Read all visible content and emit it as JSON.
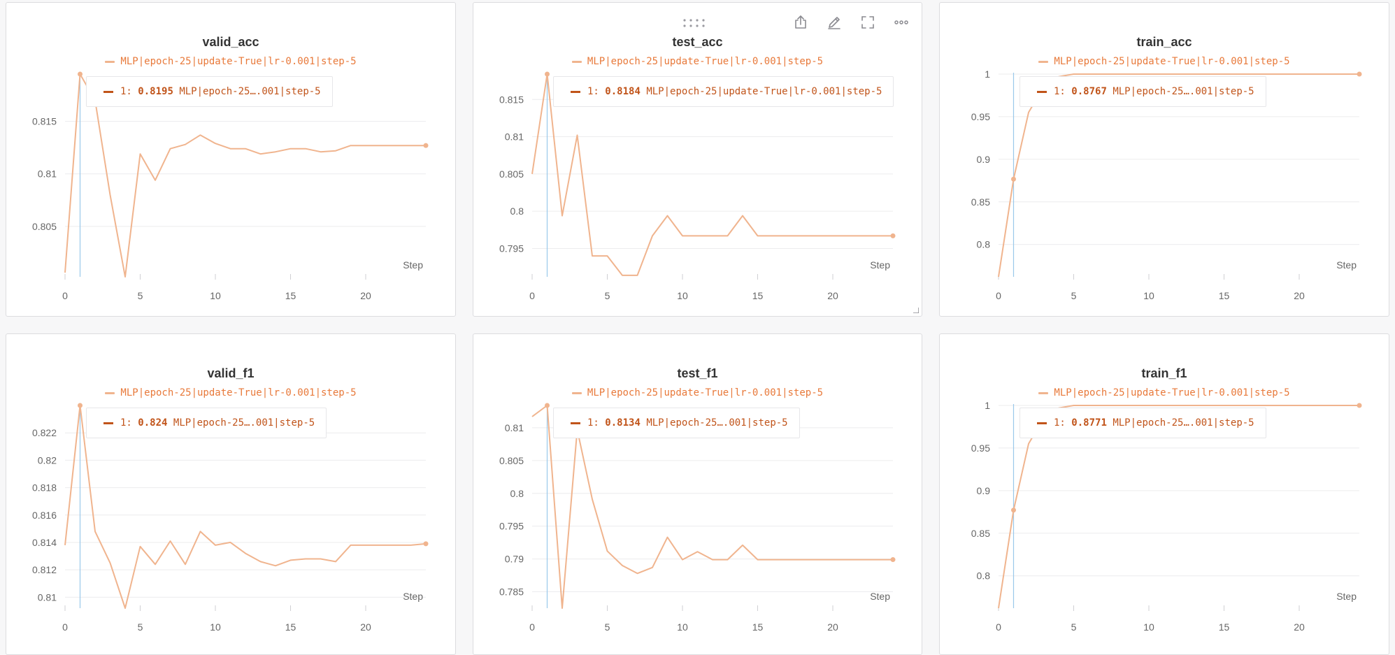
{
  "colors": {
    "line": "#f0b48e",
    "hover_line": "#9ac8ea",
    "legend_text": "#e8793a",
    "tooltip_text": "#c1541a",
    "grid": "#ececee"
  },
  "icons": [
    "drag-handle-icon",
    "share-icon",
    "edit-icon",
    "fullscreen-icon",
    "more-icon",
    "resize-corner-icon"
  ],
  "chart_data": [
    {
      "type": "line",
      "title": "valid_acc",
      "xlabel": "Step",
      "legend": "MLP|epoch-25|update-True|lr-0.001|step-5",
      "tooltip": {
        "prefix": "1:",
        "value": "0.8195",
        "name": "MLP|epoch-25….001|step-5"
      },
      "hover_x": 1,
      "xlim": [
        0,
        24
      ],
      "ylim": [
        0.8002,
        0.8195
      ],
      "x_ticks": [
        0,
        5,
        10,
        15,
        20
      ],
      "y_ticks": [
        0.805,
        0.81,
        0.815
      ],
      "y_tick_labels": [
        "0.805",
        "0.81",
        "0.815"
      ],
      "x": [
        0,
        1,
        2,
        3,
        4,
        5,
        6,
        7,
        8,
        9,
        10,
        11,
        12,
        13,
        14,
        15,
        16,
        17,
        18,
        19,
        20,
        21,
        22,
        23,
        24
      ],
      "values": [
        0.8006,
        0.8195,
        0.817,
        0.808,
        0.8002,
        0.8119,
        0.8094,
        0.8124,
        0.8128,
        0.8137,
        0.8129,
        0.8124,
        0.8124,
        0.8119,
        0.8121,
        0.8124,
        0.8124,
        0.8121,
        0.8122,
        0.8127,
        0.8127,
        0.8127,
        0.8127,
        0.8127,
        0.8127
      ]
    },
    {
      "type": "line",
      "title": "test_acc",
      "xlabel": "Step",
      "legend": "MLP|epoch-25|update-True|lr-0.001|step-5",
      "tooltip": {
        "prefix": "1:",
        "value": "0.8184",
        "name": "MLP|epoch-25|update-True|lr-0.001|step-5"
      },
      "hover_x": 1,
      "xlim": [
        0,
        24
      ],
      "ylim": [
        0.7912,
        0.8184
      ],
      "x_ticks": [
        0,
        5,
        10,
        15,
        20
      ],
      "y_ticks": [
        0.795,
        0.8,
        0.805,
        0.81,
        0.815
      ],
      "y_tick_labels": [
        "0.795",
        "0.8",
        "0.805",
        "0.81",
        "0.815"
      ],
      "x": [
        0,
        1,
        2,
        3,
        4,
        5,
        6,
        7,
        8,
        9,
        10,
        11,
        12,
        13,
        14,
        15,
        16,
        17,
        18,
        19,
        20,
        21,
        22,
        23,
        24
      ],
      "values": [
        0.805,
        0.8184,
        0.7994,
        0.8102,
        0.794,
        0.794,
        0.7914,
        0.7914,
        0.7967,
        0.7994,
        0.7967,
        0.7967,
        0.7967,
        0.7967,
        0.7994,
        0.7967,
        0.7967,
        0.7967,
        0.7967,
        0.7967,
        0.7967,
        0.7967,
        0.7967,
        0.7967,
        0.7967
      ]
    },
    {
      "type": "line",
      "title": "train_acc",
      "xlabel": "Step",
      "legend": "MLP|epoch-25|update-True|lr-0.001|step-5",
      "tooltip": {
        "prefix": "1:",
        "value": "0.8767",
        "name": "MLP|epoch-25….001|step-5"
      },
      "hover_x": 1,
      "xlim": [
        0,
        24
      ],
      "ylim": [
        0.762,
        1.0
      ],
      "x_ticks": [
        0,
        5,
        10,
        15,
        20
      ],
      "y_ticks": [
        0.8,
        0.85,
        0.9,
        0.95,
        1.0
      ],
      "y_tick_labels": [
        "0.8",
        "0.85",
        "0.9",
        "0.95",
        "1"
      ],
      "x": [
        0,
        1,
        2,
        3,
        4,
        5,
        6,
        7,
        8,
        9,
        10,
        11,
        12,
        13,
        14,
        15,
        16,
        17,
        18,
        19,
        20,
        21,
        22,
        23,
        24
      ],
      "values": [
        0.762,
        0.8767,
        0.955,
        0.985,
        0.997,
        1,
        1,
        1,
        1,
        1,
        1,
        1,
        1,
        1,
        1,
        1,
        1,
        1,
        1,
        1,
        1,
        1,
        1,
        1,
        1
      ]
    },
    {
      "type": "line",
      "title": "valid_f1",
      "xlabel": "Step",
      "legend": "MLP|epoch-25|update-True|lr-0.001|step-5",
      "tooltip": {
        "prefix": "1:",
        "value": "0.824",
        "name": "MLP|epoch-25….001|step-5"
      },
      "hover_x": 1,
      "xlim": [
        0,
        24
      ],
      "ylim": [
        0.8092,
        0.824
      ],
      "x_ticks": [
        0,
        5,
        10,
        15,
        20
      ],
      "y_ticks": [
        0.81,
        0.812,
        0.814,
        0.816,
        0.818,
        0.82,
        0.822
      ],
      "y_tick_labels": [
        "0.81",
        "0.812",
        "0.814",
        "0.816",
        "0.818",
        "0.82",
        "0.822"
      ],
      "x": [
        0,
        1,
        2,
        3,
        4,
        5,
        6,
        7,
        8,
        9,
        10,
        11,
        12,
        13,
        14,
        15,
        16,
        17,
        18,
        19,
        20,
        21,
        22,
        23,
        24
      ],
      "values": [
        0.8138,
        0.824,
        0.8148,
        0.8125,
        0.8092,
        0.8137,
        0.8124,
        0.8141,
        0.8124,
        0.8148,
        0.8138,
        0.814,
        0.8132,
        0.8126,
        0.8123,
        0.8127,
        0.8128,
        0.8128,
        0.8126,
        0.8138,
        0.8138,
        0.8138,
        0.8138,
        0.8138,
        0.8139
      ]
    },
    {
      "type": "line",
      "title": "test_f1",
      "xlabel": "Step",
      "legend": "MLP|epoch-25|update-True|lr-0.001|step-5",
      "tooltip": {
        "prefix": "1:",
        "value": "0.8134",
        "name": "MLP|epoch-25….001|step-5"
      },
      "hover_x": 1,
      "xlim": [
        0,
        24
      ],
      "ylim": [
        0.7825,
        0.8134
      ],
      "x_ticks": [
        0,
        5,
        10,
        15,
        20
      ],
      "y_ticks": [
        0.785,
        0.79,
        0.795,
        0.8,
        0.805,
        0.81
      ],
      "y_tick_labels": [
        "0.785",
        "0.79",
        "0.795",
        "0.8",
        "0.805",
        "0.81"
      ],
      "x": [
        0,
        1,
        2,
        3,
        4,
        5,
        6,
        7,
        8,
        9,
        10,
        11,
        12,
        13,
        14,
        15,
        16,
        17,
        18,
        19,
        20,
        21,
        22,
        23,
        24
      ],
      "values": [
        0.8117,
        0.8134,
        0.7825,
        0.8097,
        0.7991,
        0.7912,
        0.789,
        0.7878,
        0.7887,
        0.7933,
        0.7899,
        0.7911,
        0.7899,
        0.7899,
        0.7921,
        0.7899,
        0.7899,
        0.7899,
        0.7899,
        0.7899,
        0.7899,
        0.7899,
        0.7899,
        0.7899,
        0.7899
      ]
    },
    {
      "type": "line",
      "title": "train_f1",
      "xlabel": "Step",
      "legend": "MLP|epoch-25|update-True|lr-0.001|step-5",
      "tooltip": {
        "prefix": "1:",
        "value": "0.8771",
        "name": "MLP|epoch-25….001|step-5"
      },
      "hover_x": 1,
      "xlim": [
        0,
        24
      ],
      "ylim": [
        0.762,
        1.0
      ],
      "x_ticks": [
        0,
        5,
        10,
        15,
        20
      ],
      "y_ticks": [
        0.8,
        0.85,
        0.9,
        0.95,
        1.0
      ],
      "y_tick_labels": [
        "0.8",
        "0.85",
        "0.9",
        "0.95",
        "1"
      ],
      "x": [
        0,
        1,
        2,
        3,
        4,
        5,
        6,
        7,
        8,
        9,
        10,
        11,
        12,
        13,
        14,
        15,
        16,
        17,
        18,
        19,
        20,
        21,
        22,
        23,
        24
      ],
      "values": [
        0.762,
        0.8771,
        0.955,
        0.985,
        0.997,
        1,
        1,
        1,
        1,
        1,
        1,
        1,
        1,
        1,
        1,
        1,
        1,
        1,
        1,
        1,
        1,
        1,
        1,
        1,
        1
      ]
    }
  ]
}
